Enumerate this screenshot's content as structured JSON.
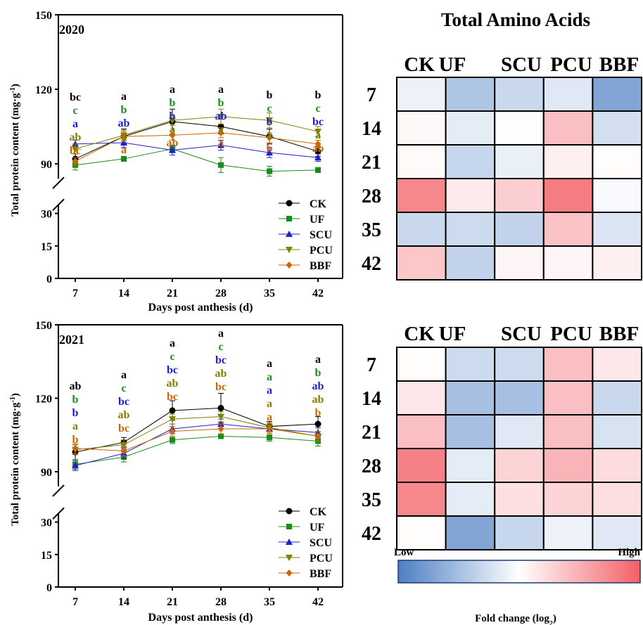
{
  "chart_data": [
    {
      "type": "line",
      "panel_label": "2020",
      "xlabel": "Days post  anthesis (d)",
      "ylabel": "Total protein content (mg·g",
      "ylabel_sup": "-1",
      "ylabel_close": ")",
      "x": [
        7,
        14,
        21,
        28,
        35,
        42
      ],
      "y_ticks": [
        "0",
        "15",
        "30",
        "90",
        "120",
        "150"
      ],
      "y_axis": "broken: 0–35 and 85–150",
      "series": [
        {
          "name": "CK",
          "color": "#000000",
          "marker": "circle",
          "values": [
            92,
            101,
            107,
            105,
            101,
            95
          ],
          "err": [
            2,
            3,
            5,
            3,
            3,
            2
          ],
          "letters": [
            "bc",
            "a",
            "a",
            "a",
            "b",
            "b"
          ]
        },
        {
          "name": "UF",
          "color": "#1a8c1a",
          "marker": "square",
          "values": [
            89.5,
            92,
            96,
            89.5,
            87,
            87.5
          ],
          "err": [
            2,
            1,
            1.5,
            3,
            2,
            1
          ],
          "letters": [
            "c",
            "b",
            "b",
            "b",
            "c",
            "c"
          ]
        },
        {
          "name": "SCU",
          "color": "#2020c8",
          "marker": "triangle-up",
          "values": [
            98,
            98.5,
            95.5,
            97.5,
            94.5,
            92.5
          ],
          "err": [
            1.5,
            2,
            2,
            2,
            2,
            1.5
          ],
          "letters": [
            "a",
            "ab",
            "b",
            "ab",
            "b",
            "bc"
          ]
        },
        {
          "name": "PCU",
          "color": "#808000",
          "marker": "triangle-down",
          "values": [
            96,
            101.5,
            107.5,
            109,
            107.5,
            103
          ],
          "err": [
            2,
            2,
            2,
            3,
            3,
            2
          ],
          "letters": [
            "ab",
            "a",
            "a",
            "a",
            "a",
            "a"
          ]
        },
        {
          "name": "BBF",
          "color": "#cc6600",
          "marker": "diamond",
          "values": [
            91,
            101,
            101.5,
            102.5,
            100.5,
            98
          ],
          "err": [
            1.5,
            2,
            2,
            2,
            2,
            1.5
          ],
          "letters": [
            "bc",
            "a",
            "ab",
            "a",
            "b",
            "ab"
          ]
        }
      ]
    },
    {
      "type": "line",
      "panel_label": "2021",
      "xlabel": "Days post  anthesis (d)",
      "ylabel": "Total protein content (mg·g",
      "ylabel_sup": "-1",
      "ylabel_close": ")",
      "x": [
        7,
        14,
        21,
        28,
        35,
        42
      ],
      "y_ticks": [
        "0",
        "15",
        "30",
        "90",
        "120",
        "150"
      ],
      "y_axis": "broken: 0–35 and 85–150",
      "series": [
        {
          "name": "CK",
          "color": "#000000",
          "marker": "circle",
          "values": [
            98,
            102,
            115,
            116,
            108.5,
            109.5
          ],
          "err": [
            3,
            2,
            4,
            6,
            2,
            3
          ],
          "letters": [
            "ab",
            "a",
            "a",
            "a",
            "a",
            "a"
          ]
        },
        {
          "name": "UF",
          "color": "#1a8c1a",
          "marker": "square",
          "values": [
            93,
            96,
            103,
            104.5,
            104,
            102.5
          ],
          "err": [
            2,
            2,
            1.5,
            1,
            1.5,
            2
          ],
          "letters": [
            "b",
            "c",
            "c",
            "c",
            "a",
            "b"
          ]
        },
        {
          "name": "SCU",
          "color": "#2020c8",
          "marker": "triangle-up",
          "values": [
            92.5,
            97.5,
            107.5,
            109.5,
            107.5,
            106
          ],
          "err": [
            2,
            2,
            2,
            2,
            2,
            2
          ],
          "letters": [
            "b",
            "bc",
            "bc",
            "bc",
            "a",
            "ab"
          ]
        },
        {
          "name": "PCU",
          "color": "#808000",
          "marker": "triangle-down",
          "values": [
            99,
            101,
            111.5,
            112.5,
            108,
            104.5
          ],
          "err": [
            2,
            2,
            2,
            2,
            2,
            2
          ],
          "letters": [
            "a",
            "ab",
            "ab",
            "ab",
            "a",
            "ab"
          ]
        },
        {
          "name": "BBF",
          "color": "#cc6600",
          "marker": "diamond",
          "values": [
            99.5,
            98.5,
            106.5,
            107.5,
            107.5,
            104.5
          ],
          "err": [
            2,
            2,
            2,
            2,
            2,
            2
          ],
          "letters": [
            "b",
            "bc",
            "bc",
            "bc",
            "a",
            "b"
          ]
        }
      ]
    },
    {
      "type": "heatmap",
      "title": "Total Amino Acids",
      "columns": [
        "CK",
        "UF",
        "SCU",
        "PCU",
        "BBF"
      ],
      "rows": [
        "7",
        "14",
        "21",
        "28",
        "35",
        "42"
      ],
      "scale_note": "log2 fold change, -1 = low (blue), 0 = white, 1 = high (red)",
      "values": [
        [
          -0.1,
          -0.45,
          -0.3,
          -0.18,
          -0.7
        ],
        [
          0.05,
          -0.15,
          0.02,
          0.4,
          -0.25
        ],
        [
          0.03,
          -0.32,
          -0.12,
          0.1,
          0.02
        ],
        [
          0.75,
          0.13,
          0.3,
          0.82,
          -0.04
        ],
        [
          -0.3,
          -0.28,
          -0.35,
          0.38,
          -0.2
        ],
        [
          0.35,
          -0.35,
          0.06,
          0.06,
          0.1
        ]
      ]
    },
    {
      "type": "heatmap",
      "title": "",
      "columns": [
        "CK",
        "UF",
        "SCU",
        "PCU",
        "BBF"
      ],
      "rows": [
        "7",
        "14",
        "21",
        "28",
        "35",
        "42"
      ],
      "scale_note": "log2 fold change, -1 = low (blue), 0 = white, 1 = high (red)",
      "values": [
        [
          0.02,
          -0.28,
          -0.28,
          0.4,
          0.15
        ],
        [
          0.16,
          -0.5,
          -0.5,
          0.4,
          -0.3
        ],
        [
          0.4,
          -0.5,
          -0.18,
          0.4,
          -0.22
        ],
        [
          0.8,
          -0.15,
          0.27,
          0.47,
          0.22
        ],
        [
          0.75,
          -0.15,
          0.2,
          0.27,
          0.2
        ],
        [
          0.02,
          -0.7,
          -0.32,
          -0.1,
          -0.18
        ]
      ]
    }
  ],
  "legend_items": [
    "CK",
    "UF",
    "SCU",
    "PCU",
    "BBF"
  ],
  "colorbar": {
    "low_label": "Low",
    "high_label": "High",
    "title": "Fold change (log",
    "title_sub": "2",
    "title_close": ")",
    "colors": {
      "low": "#4d7ec4",
      "mid": "#ffffff",
      "high": "#f36066"
    }
  }
}
